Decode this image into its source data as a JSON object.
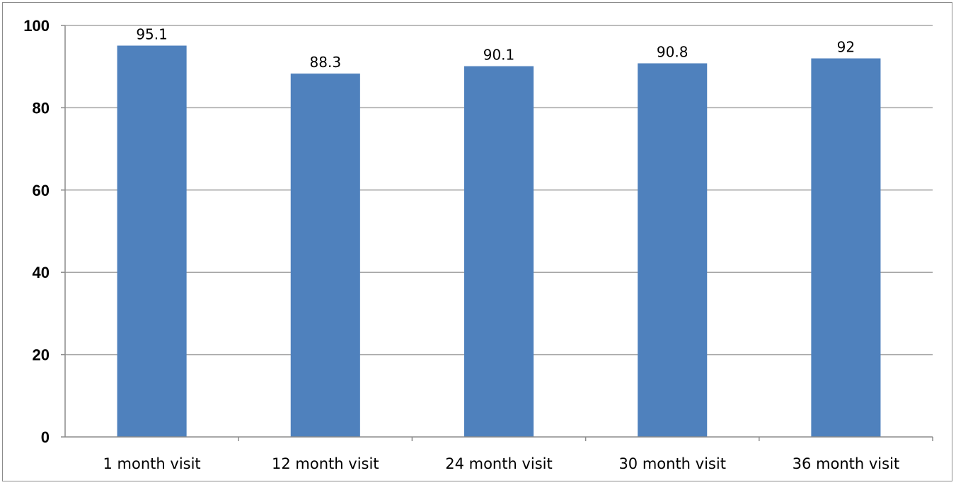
{
  "chart_data": {
    "type": "bar",
    "title": "",
    "xlabel": "",
    "ylabel": "",
    "categories": [
      "1 month visit",
      "12 month visit",
      "24 month visit",
      "30 month visit",
      "36 month visit"
    ],
    "values": [
      95.1,
      88.3,
      90.1,
      90.8,
      92
    ],
    "data_labels": [
      "95.1",
      "88.3",
      "90.1",
      "90.8",
      "92"
    ],
    "ylim": [
      0,
      100
    ],
    "yticks": [
      0,
      20,
      40,
      60,
      80,
      100
    ],
    "grid": true,
    "legend": "none",
    "bar_color": "#4f81bd",
    "gridline_color": "#a6a6a6"
  }
}
